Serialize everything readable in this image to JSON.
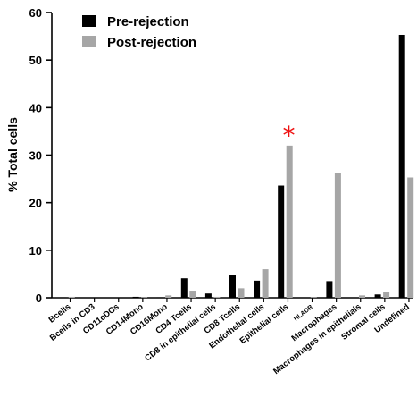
{
  "chart_data": {
    "type": "bar",
    "ylabel": "% Total cells",
    "ylim": [
      0,
      60
    ],
    "yticks": [
      0,
      10,
      20,
      30,
      40,
      50,
      60
    ],
    "categories": [
      "Bcells",
      "Bcells in CD3",
      "CD11cDCs",
      "CD14Mono",
      "CD16Mono",
      "CD4 Tcells",
      "CD8 in epithelial cells",
      "CD8 Tcells",
      "Endothelial cells",
      "Epithelial cells",
      "HLADR",
      "Macrophages",
      "Macrophages in epithelials",
      "Stromal cells",
      "Undefined"
    ],
    "series": [
      {
        "name": "Pre-rejection",
        "color": "#000000",
        "values": [
          0.1,
          0,
          0,
          0.2,
          0.1,
          4.1,
          0.9,
          4.7,
          3.6,
          23.6,
          0,
          3.5,
          0,
          0.7,
          55.3
        ]
      },
      {
        "name": "Post-rejection",
        "color": "#a6a6a6",
        "values": [
          0.2,
          0,
          0,
          0.1,
          0.5,
          1.5,
          0.2,
          2.0,
          6.0,
          32.0,
          0.1,
          26.2,
          0.5,
          1.2,
          25.3
        ]
      }
    ],
    "annotations": [
      {
        "category": "Epithelial cells",
        "text": "*",
        "color": "#ee1111"
      }
    ],
    "legend": "top-left"
  }
}
